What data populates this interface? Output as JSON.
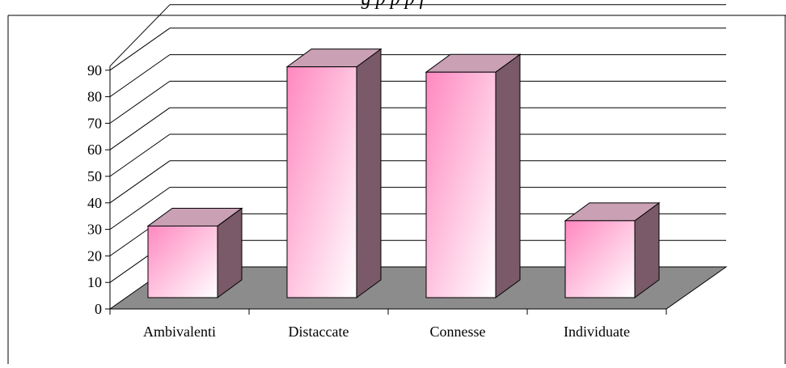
{
  "caption": "g                              p   p  p  f",
  "colors": {
    "bar_front_top": "#ff88c0",
    "bar_front_bottom": "#ffffff",
    "bar_side": "#7a5a68",
    "bar_top": "#caa0b4",
    "floor": "#8c8c8c",
    "gridline": "#000000"
  },
  "chart_data": {
    "type": "bar",
    "style": "3d",
    "categories": [
      "Ambivalenti",
      "Distaccate",
      "Connesse",
      "Individuate"
    ],
    "values": [
      27,
      87,
      85,
      29
    ],
    "title": "",
    "xlabel": "",
    "ylabel": "",
    "ylim": [
      0,
      90
    ],
    "yticks": [
      0,
      10,
      20,
      30,
      40,
      50,
      60,
      70,
      80,
      90
    ],
    "grid": true,
    "legend": "none"
  }
}
